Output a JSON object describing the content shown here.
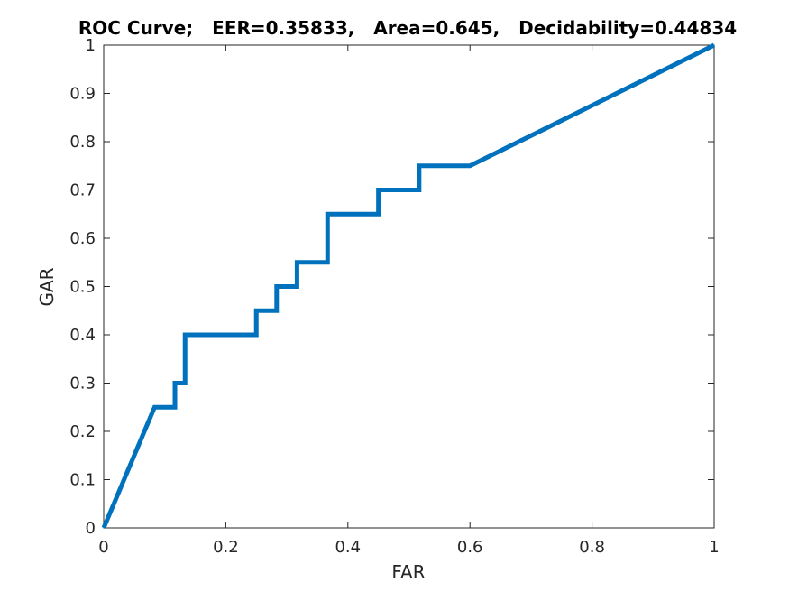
{
  "chart_data": {
    "type": "line",
    "title": "ROC Curve;   EER=0.35833,   Area=0.645,   Decidability=0.44834",
    "xlabel": "FAR",
    "ylabel": "GAR",
    "xlim": [
      0,
      1
    ],
    "ylim": [
      0,
      1
    ],
    "grid": false,
    "box": true,
    "xticks": [
      0,
      0.2,
      0.4,
      0.6,
      0.8,
      1
    ],
    "xtick_labels": [
      "0",
      "0.2",
      "0.4",
      "0.6",
      "0.8",
      "1"
    ],
    "yticks": [
      0,
      0.1,
      0.2,
      0.3,
      0.4,
      0.5,
      0.6,
      0.7,
      0.8,
      0.9,
      1
    ],
    "ytick_labels": [
      "0",
      "0.1",
      "0.2",
      "0.3",
      "0.4",
      "0.5",
      "0.6",
      "0.7",
      "0.8",
      "0.9",
      "1"
    ],
    "series": [
      {
        "color": "#0072bd",
        "points": [
          [
            0,
            0
          ],
          [
            0.0833,
            0.25
          ],
          [
            0.1167,
            0.25
          ],
          [
            0.1167,
            0.3
          ],
          [
            0.1333,
            0.3
          ],
          [
            0.1333,
            0.4
          ],
          [
            0.25,
            0.4
          ],
          [
            0.25,
            0.45
          ],
          [
            0.2833,
            0.45
          ],
          [
            0.2833,
            0.5
          ],
          [
            0.3167,
            0.5
          ],
          [
            0.3167,
            0.55
          ],
          [
            0.3667,
            0.55
          ],
          [
            0.3667,
            0.65
          ],
          [
            0.45,
            0.65
          ],
          [
            0.45,
            0.7
          ],
          [
            0.5167,
            0.7
          ],
          [
            0.5167,
            0.75
          ],
          [
            0.6,
            0.75
          ],
          [
            1,
            1
          ]
        ]
      }
    ]
  }
}
